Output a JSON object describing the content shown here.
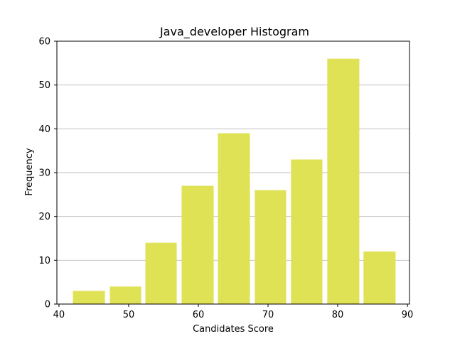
{
  "chart_data": {
    "type": "bar",
    "title": "Java_developer Histogram",
    "xlabel": "Candidates Score",
    "ylabel": "Frequency",
    "x_ticks": [
      40,
      50,
      60,
      70,
      80,
      90
    ],
    "y_ticks": [
      0,
      10,
      20,
      30,
      40,
      50,
      60
    ],
    "xlim": [
      39.7,
      90.3
    ],
    "ylim": [
      0,
      60
    ],
    "grid": "horizontal",
    "bar_color": "#e0e256",
    "bin_width": 5.2,
    "bins": [
      {
        "start": 42.0,
        "end": 46.6,
        "count": 3
      },
      {
        "start": 47.3,
        "end": 51.8,
        "count": 4
      },
      {
        "start": 52.4,
        "end": 56.9,
        "count": 14
      },
      {
        "start": 57.6,
        "end": 62.2,
        "count": 27
      },
      {
        "start": 62.8,
        "end": 67.4,
        "count": 39
      },
      {
        "start": 68.1,
        "end": 72.6,
        "count": 26
      },
      {
        "start": 73.3,
        "end": 77.8,
        "count": 33
      },
      {
        "start": 78.5,
        "end": 83.1,
        "count": 56
      },
      {
        "start": 83.7,
        "end": 88.3,
        "count": 12
      }
    ]
  }
}
